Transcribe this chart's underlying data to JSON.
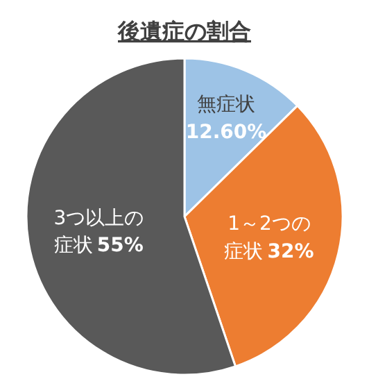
{
  "chart_data": {
    "type": "pie",
    "title": "後遺症の割合",
    "categories": [
      "無症状",
      "1～2つの症状",
      "3つ以上の症状"
    ],
    "values": [
      12.6,
      32,
      55
    ],
    "value_labels": [
      "12.60%",
      "32%",
      "55%"
    ],
    "colors": [
      "#9dc3e6",
      "#ed7d31",
      "#595959"
    ]
  }
}
